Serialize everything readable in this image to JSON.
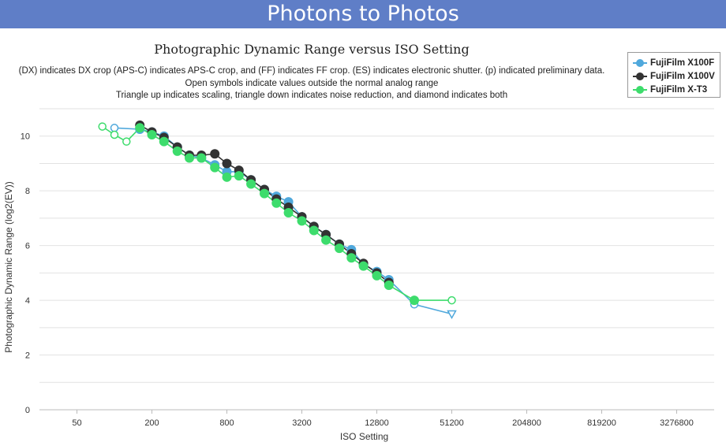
{
  "header": {
    "site_title": "Photons to Photos"
  },
  "chart_data": {
    "type": "line",
    "title": "Photographic Dynamic Range versus ISO Setting",
    "subtitle_lines": [
      "(DX) indicates DX crop (APS-C) indicates APS-C crop, and (FF) indicates FF crop. (ES) indicates electronic shutter. (p) indicated preliminary data.",
      "Open symbols indicate values outside the normal analog range",
      "Triangle up indicates scaling, triangle down indicates noise reduction, and diamond indicates both"
    ],
    "xlabel": "ISO Setting",
    "ylabel": "Photographic Dynamic Range (log2(EV))",
    "x_scale": "log2",
    "x_ticks": [
      50,
      200,
      800,
      3200,
      12800,
      51200,
      204800,
      819200,
      3276800
    ],
    "xlim": [
      25,
      6553600
    ],
    "y_ticks": [
      0,
      2,
      4,
      6,
      8,
      10
    ],
    "ylim": [
      0,
      11
    ],
    "grid": true,
    "legend_position": "top-right",
    "series": [
      {
        "name": "FujiFilm X100F",
        "color": "#4fa8dc",
        "points": [
          {
            "x": 100,
            "y": 10.3,
            "open": true
          },
          {
            "x": 160,
            "y": 10.25
          },
          {
            "x": 200,
            "y": 10.15
          },
          {
            "x": 250,
            "y": 10.0
          },
          {
            "x": 320,
            "y": 9.6
          },
          {
            "x": 400,
            "y": 9.3
          },
          {
            "x": 500,
            "y": 9.2
          },
          {
            "x": 640,
            "y": 8.95
          },
          {
            "x": 800,
            "y": 8.7
          },
          {
            "x": 1000,
            "y": 8.7
          },
          {
            "x": 1250,
            "y": 8.4
          },
          {
            "x": 1600,
            "y": 8.05
          },
          {
            "x": 2000,
            "y": 7.8
          },
          {
            "x": 2500,
            "y": 7.6
          },
          {
            "x": 3200,
            "y": 7.05
          },
          {
            "x": 4000,
            "y": 6.7
          },
          {
            "x": 5000,
            "y": 6.4
          },
          {
            "x": 6400,
            "y": 6.05
          },
          {
            "x": 8000,
            "y": 5.85
          },
          {
            "x": 10000,
            "y": 5.3
          },
          {
            "x": 12800,
            "y": 5.05
          },
          {
            "x": 16000,
            "y": 4.75
          },
          {
            "x": 25600,
            "y": 3.85,
            "open": true
          },
          {
            "x": 51200,
            "y": 3.5,
            "open": true,
            "marker": "triangle-down"
          }
        ]
      },
      {
        "name": "FujiFilm X100V",
        "color": "#333333",
        "points": [
          {
            "x": 160,
            "y": 10.4
          },
          {
            "x": 200,
            "y": 10.15
          },
          {
            "x": 250,
            "y": 9.95
          },
          {
            "x": 320,
            "y": 9.6
          },
          {
            "x": 400,
            "y": 9.3
          },
          {
            "x": 500,
            "y": 9.3
          },
          {
            "x": 640,
            "y": 9.35
          },
          {
            "x": 800,
            "y": 9.0
          },
          {
            "x": 1000,
            "y": 8.75
          },
          {
            "x": 1250,
            "y": 8.4
          },
          {
            "x": 1600,
            "y": 8.05
          },
          {
            "x": 2000,
            "y": 7.7
          },
          {
            "x": 2500,
            "y": 7.4
          },
          {
            "x": 3200,
            "y": 7.05
          },
          {
            "x": 4000,
            "y": 6.7
          },
          {
            "x": 5000,
            "y": 6.4
          },
          {
            "x": 6400,
            "y": 6.05
          },
          {
            "x": 8000,
            "y": 5.7
          },
          {
            "x": 10000,
            "y": 5.35
          },
          {
            "x": 12800,
            "y": 5.0
          },
          {
            "x": 16000,
            "y": 4.65
          }
        ]
      },
      {
        "name": "FujiFilm X-T3",
        "color": "#3ddc6c",
        "points": [
          {
            "x": 80,
            "y": 10.35,
            "open": true
          },
          {
            "x": 100,
            "y": 10.05,
            "open": true
          },
          {
            "x": 125,
            "y": 9.8,
            "open": true
          },
          {
            "x": 160,
            "y": 10.3
          },
          {
            "x": 200,
            "y": 10.05
          },
          {
            "x": 250,
            "y": 9.8
          },
          {
            "x": 320,
            "y": 9.45
          },
          {
            "x": 400,
            "y": 9.2
          },
          {
            "x": 500,
            "y": 9.2
          },
          {
            "x": 640,
            "y": 8.85
          },
          {
            "x": 800,
            "y": 8.5
          },
          {
            "x": 1000,
            "y": 8.55
          },
          {
            "x": 1250,
            "y": 8.25
          },
          {
            "x": 1600,
            "y": 7.9
          },
          {
            "x": 2000,
            "y": 7.55
          },
          {
            "x": 2500,
            "y": 7.2
          },
          {
            "x": 3200,
            "y": 6.9
          },
          {
            "x": 4000,
            "y": 6.55
          },
          {
            "x": 5000,
            "y": 6.2
          },
          {
            "x": 6400,
            "y": 5.9
          },
          {
            "x": 8000,
            "y": 5.55
          },
          {
            "x": 10000,
            "y": 5.25
          },
          {
            "x": 12800,
            "y": 4.9
          },
          {
            "x": 16000,
            "y": 4.55
          },
          {
            "x": 25600,
            "y": 4.0
          },
          {
            "x": 51200,
            "y": 4.0,
            "open": true
          }
        ]
      }
    ]
  }
}
